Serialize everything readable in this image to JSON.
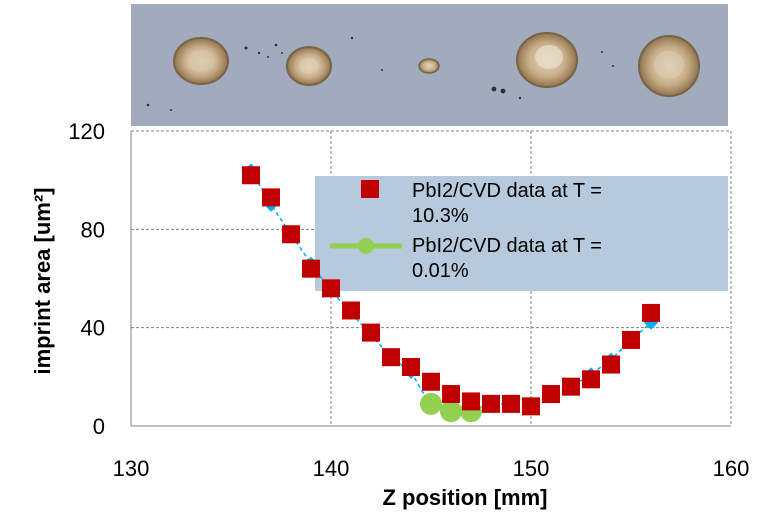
{
  "chart_data": {
    "type": "scatter",
    "title": "",
    "xlabel": "Z position [mm]",
    "ylabel": "imprint area [um²]",
    "xlim": [
      130,
      160
    ],
    "ylim": [
      0,
      120
    ],
    "x_ticks": [
      "130",
      "140",
      "150",
      "160"
    ],
    "y_ticks": [
      "0",
      "40",
      "80",
      "120"
    ],
    "grid": true,
    "legend_position": "top-right (overlapping plot)",
    "series": [
      {
        "name": "PbI2/CVD data at T = 10.3%",
        "marker": "square",
        "color": "#c00000",
        "x": [
          136,
          137,
          138,
          139,
          140,
          141,
          142,
          143,
          144,
          145,
          146,
          147,
          148,
          149,
          150,
          151,
          152,
          153,
          154,
          155,
          156
        ],
        "y": [
          102,
          93,
          78,
          64,
          56,
          47,
          38,
          28,
          24,
          18,
          13,
          10,
          9,
          9,
          8,
          13,
          16,
          19,
          25,
          35,
          46
        ]
      },
      {
        "name": "PbI2/CVD data at T = 0.01%",
        "marker": "circle",
        "line": true,
        "color": "#92d050",
        "x": [
          145,
          146,
          147
        ],
        "y": [
          9,
          6,
          6
        ]
      },
      {
        "name": "",
        "marker": "diamond",
        "dashed_line": true,
        "color": "#00b0f0",
        "x": [
          136,
          137,
          138,
          139,
          140,
          141,
          142,
          143,
          144,
          145,
          146,
          147,
          148,
          149,
          150,
          151,
          152,
          153,
          154,
          155,
          156
        ],
        "y": [
          104,
          90,
          78,
          66,
          55,
          46,
          37,
          28,
          22,
          8,
          6,
          6,
          9,
          9,
          9,
          12,
          16,
          21,
          27,
          35,
          42
        ]
      }
    ],
    "legend": [
      {
        "line1": "PbI2/CVD data at T =",
        "line2": "10.3%"
      },
      {
        "line1": "PbI2/CVD data at T =",
        "line2": "0.01%"
      }
    ]
  }
}
